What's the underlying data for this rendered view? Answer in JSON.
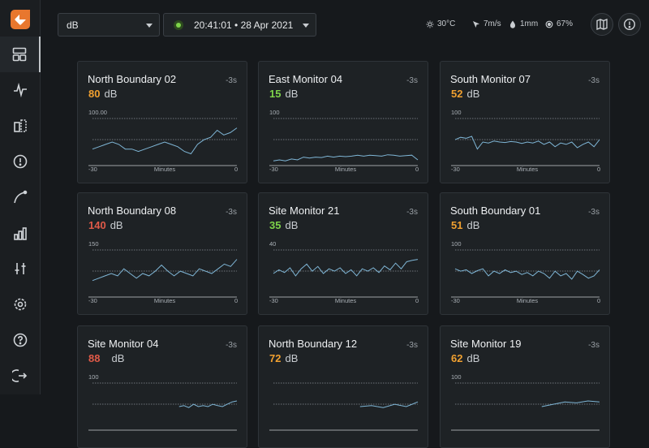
{
  "toolbar": {
    "unit_value": "dB",
    "time_value": "20:41:01 • 28 Apr 2021"
  },
  "weather": {
    "temperature": "30°C",
    "wind": "7m/s",
    "rain": "1mm",
    "humidity": "67%"
  },
  "nav": [
    "dashboard-icon",
    "activity-icon",
    "devices-icon",
    "alert-icon",
    "route-icon",
    "reports-icon",
    "controls-icon",
    "settings-icon",
    "help-icon",
    "logout-icon"
  ],
  "colors": {
    "red": "#e05a48",
    "orange": "#f0a030",
    "green": "#7ed44a",
    "line": "#7fb6d6"
  },
  "axis": {
    "start": "-30",
    "end": "0",
    "label": "Minutes"
  },
  "cards": [
    {
      "title": "North Boundary 02",
      "ago": "-3s",
      "value": "80",
      "unit": "dB",
      "status": "orange",
      "ymax": "100.00",
      "series": [
        0.35,
        0.4,
        0.45,
        0.5,
        0.45,
        0.35,
        0.35,
        0.3,
        0.35,
        0.4,
        0.45,
        0.5,
        0.45,
        0.4,
        0.3,
        0.25,
        0.45,
        0.55,
        0.6,
        0.75,
        0.65,
        0.7,
        0.8
      ]
    },
    {
      "title": "East Monitor 04",
      "ago": "-3s",
      "value": "15",
      "unit": "dB",
      "status": "green",
      "ymax": "100",
      "series": [
        0.1,
        0.12,
        0.1,
        0.14,
        0.12,
        0.18,
        0.16,
        0.18,
        0.17,
        0.2,
        0.18,
        0.2,
        0.19,
        0.2,
        0.22,
        0.2,
        0.22,
        0.21,
        0.2,
        0.23,
        0.22,
        0.2,
        0.21,
        0.22,
        0.12
      ]
    },
    {
      "title": "South Monitor 07",
      "ago": "-3s",
      "value": "52",
      "unit": "dB",
      "status": "orange",
      "ymax": "100",
      "series": [
        0.55,
        0.6,
        0.58,
        0.62,
        0.35,
        0.5,
        0.48,
        0.52,
        0.5,
        0.49,
        0.51,
        0.5,
        0.47,
        0.5,
        0.48,
        0.52,
        0.45,
        0.5,
        0.4,
        0.48,
        0.45,
        0.5,
        0.38,
        0.45,
        0.5,
        0.4,
        0.55
      ]
    },
    {
      "title": "North Boundary 08",
      "ago": "-3s",
      "value": "140",
      "unit": "dB",
      "status": "red",
      "ymax": "150",
      "series": [
        0.35,
        0.4,
        0.45,
        0.5,
        0.45,
        0.6,
        0.5,
        0.4,
        0.5,
        0.45,
        0.55,
        0.68,
        0.55,
        0.45,
        0.55,
        0.5,
        0.45,
        0.6,
        0.55,
        0.5,
        0.6,
        0.7,
        0.65,
        0.8
      ]
    },
    {
      "title": "Site Monitor 21",
      "ago": "-3s",
      "value": "35",
      "unit": "dB",
      "status": "green",
      "ymax": "40",
      "series": [
        0.5,
        0.58,
        0.52,
        0.62,
        0.45,
        0.6,
        0.7,
        0.55,
        0.65,
        0.5,
        0.6,
        0.55,
        0.62,
        0.5,
        0.58,
        0.45,
        0.6,
        0.55,
        0.62,
        0.52,
        0.66,
        0.58,
        0.72,
        0.6,
        0.75,
        0.78,
        0.8
      ]
    },
    {
      "title": "South Boundary 01",
      "ago": "-3s",
      "value": "51",
      "unit": "dB",
      "status": "orange",
      "ymax": "100",
      "series": [
        0.6,
        0.55,
        0.58,
        0.5,
        0.56,
        0.6,
        0.45,
        0.55,
        0.5,
        0.58,
        0.52,
        0.55,
        0.48,
        0.52,
        0.45,
        0.55,
        0.5,
        0.4,
        0.55,
        0.45,
        0.5,
        0.38,
        0.55,
        0.48,
        0.4,
        0.45,
        0.58
      ]
    },
    {
      "title": "Site Monitor 04",
      "ago": "-3s",
      "value": "88",
      "unit": "dB",
      "status": "red",
      "ymax": "100",
      "series": [
        0.5,
        0.52,
        0.48,
        0.55,
        0.5,
        0.52,
        0.5,
        0.55,
        0.52,
        0.5,
        0.55,
        0.6,
        0.62
      ]
    },
    {
      "title": "North Boundary 12",
      "ago": "-3s",
      "value": "72",
      "unit": "dB",
      "status": "orange",
      "ymax": "",
      "series": [
        0.5,
        0.52,
        0.48,
        0.55,
        0.5,
        0.6
      ]
    },
    {
      "title": "Site Monitor 19",
      "ago": "-3s",
      "value": "62",
      "unit": "dB",
      "status": "orange",
      "ymax": "100",
      "series": [
        0.5,
        0.55,
        0.6,
        0.58,
        0.62,
        0.6
      ]
    }
  ]
}
